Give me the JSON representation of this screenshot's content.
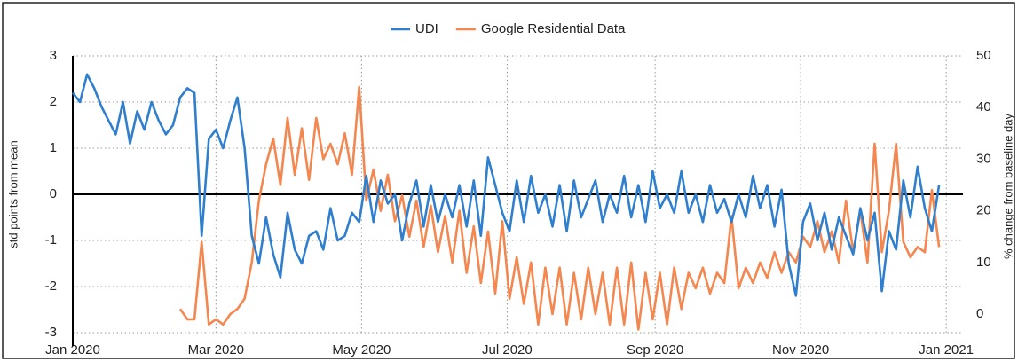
{
  "chart_data": {
    "type": "line",
    "legend": "top",
    "grid": true,
    "ylabel": "std points from mean",
    "y2label": "% change from baseline day",
    "xlim": [
      0,
      373
    ],
    "xticks": [
      {
        "value": 0,
        "label": "Jan 2020"
      },
      {
        "value": 60,
        "label": "Mar 2020"
      },
      {
        "value": 121,
        "label": "May 2020"
      },
      {
        "value": 182,
        "label": "Jul 2020"
      },
      {
        "value": 244,
        "label": "Sep 2020"
      },
      {
        "value": 305,
        "label": "Nov 2020"
      },
      {
        "value": 366,
        "label": "Jan 2021"
      }
    ],
    "ylim": [
      -3,
      3
    ],
    "yticks": [
      -3,
      -2,
      -1,
      0,
      1,
      2,
      3
    ],
    "y2lim": [
      -3.6,
      50
    ],
    "y2ticks": [
      0,
      10,
      20,
      30,
      40,
      50
    ],
    "series": [
      {
        "name": "UDI",
        "color": "#2f7fce",
        "axis": "y",
        "x": [
          0,
          3,
          6,
          9,
          12,
          15,
          18,
          21,
          24,
          27,
          30,
          33,
          36,
          39,
          42,
          45,
          48,
          51,
          54,
          57,
          60,
          63,
          66,
          69,
          72,
          75,
          78,
          81,
          84,
          87,
          90,
          93,
          96,
          99,
          102,
          105,
          108,
          111,
          114,
          117,
          120,
          123,
          126,
          129,
          132,
          135,
          138,
          141,
          144,
          147,
          150,
          153,
          156,
          159,
          162,
          165,
          168,
          171,
          174,
          177,
          180,
          183,
          186,
          189,
          192,
          195,
          198,
          201,
          204,
          207,
          210,
          213,
          216,
          219,
          222,
          225,
          228,
          231,
          234,
          237,
          240,
          243,
          246,
          249,
          252,
          255,
          258,
          261,
          264,
          267,
          270,
          273,
          276,
          279,
          282,
          285,
          288,
          291,
          294,
          297,
          300,
          303,
          306,
          309,
          312,
          315,
          318,
          321,
          324,
          327,
          330,
          333,
          336,
          339,
          342,
          345,
          348,
          351,
          354,
          357,
          360,
          363
        ],
        "values": [
          2.2,
          2.0,
          2.6,
          2.3,
          1.9,
          1.6,
          1.3,
          2.0,
          1.1,
          1.8,
          1.4,
          2.0,
          1.6,
          1.3,
          1.5,
          2.1,
          2.3,
          2.2,
          -0.9,
          1.2,
          1.4,
          1.0,
          1.6,
          2.1,
          1.0,
          -0.9,
          -1.5,
          -0.5,
          -1.3,
          -1.8,
          -0.4,
          -1.2,
          -1.5,
          -0.9,
          -0.8,
          -1.2,
          -0.3,
          -1.0,
          -0.9,
          -0.4,
          -0.6,
          0.4,
          -0.6,
          0.3,
          -0.2,
          0.0,
          -1.0,
          -0.2,
          0.3,
          -0.7,
          0.2,
          -0.6,
          0.0,
          -0.5,
          0.2,
          -0.7,
          0.3,
          -0.9,
          0.8,
          0.2,
          -0.4,
          -0.8,
          0.3,
          -0.6,
          0.4,
          -0.4,
          0.0,
          -0.7,
          0.2,
          -0.8,
          0.3,
          -0.5,
          -0.1,
          0.3,
          -0.6,
          0.0,
          -0.4,
          0.4,
          -0.5,
          0.2,
          -0.6,
          0.5,
          -0.3,
          0.0,
          -0.4,
          0.5,
          -0.4,
          0.0,
          -0.6,
          0.2,
          -0.4,
          -0.1,
          -0.6,
          0.0,
          -0.5,
          0.4,
          -0.3,
          0.2,
          -0.7,
          0.1,
          -1.5,
          -2.2,
          -0.6,
          -0.2,
          -1.0,
          -0.4,
          -1.2,
          -0.5,
          -0.9,
          -1.3,
          -0.3,
          -1.0,
          -0.4,
          -2.1,
          -0.8,
          -1.2,
          0.3,
          -0.5,
          0.6,
          -0.3,
          -0.8,
          0.2
        ]
      },
      {
        "name": "Google Residential Data",
        "color": "#f4874f",
        "axis": "y2",
        "x": [
          45,
          48,
          51,
          54,
          57,
          60,
          63,
          66,
          69,
          72,
          75,
          78,
          81,
          84,
          87,
          90,
          93,
          96,
          99,
          102,
          105,
          108,
          111,
          114,
          117,
          120,
          123,
          126,
          129,
          132,
          135,
          138,
          141,
          144,
          147,
          150,
          153,
          156,
          159,
          162,
          165,
          168,
          171,
          174,
          177,
          180,
          183,
          186,
          189,
          192,
          195,
          198,
          201,
          204,
          207,
          210,
          213,
          216,
          219,
          222,
          225,
          228,
          231,
          234,
          237,
          240,
          243,
          246,
          249,
          252,
          255,
          258,
          261,
          264,
          267,
          270,
          273,
          276,
          279,
          282,
          285,
          288,
          291,
          294,
          297,
          300,
          303,
          306,
          309,
          312,
          315,
          318,
          321,
          324,
          327,
          330,
          333,
          336,
          339,
          342,
          345,
          348,
          351,
          354,
          357,
          360,
          363
        ],
        "values": [
          1,
          -1,
          -1,
          14,
          -2,
          -1,
          -2,
          0,
          1,
          3,
          10,
          22,
          29,
          34,
          25,
          38,
          27,
          36,
          26,
          38,
          30,
          33,
          29,
          35,
          27,
          44,
          22,
          28,
          20,
          27,
          18,
          23,
          15,
          22,
          13,
          21,
          12,
          19,
          10,
          20,
          8,
          17,
          6,
          16,
          4,
          18,
          3,
          11,
          2,
          10,
          -2,
          9,
          0,
          9,
          -2,
          8,
          -1,
          9,
          0,
          8,
          -2,
          9,
          -2,
          10,
          -3,
          8,
          -1,
          8,
          -2,
          9,
          1,
          8,
          5,
          9,
          4,
          8,
          6,
          19,
          5,
          9,
          6,
          10,
          7,
          12,
          8,
          12,
          10,
          15,
          13,
          18,
          12,
          16,
          10,
          22,
          12,
          20,
          10,
          33,
          12,
          20,
          33,
          14,
          11,
          13,
          12,
          24,
          13
        ]
      }
    ]
  }
}
